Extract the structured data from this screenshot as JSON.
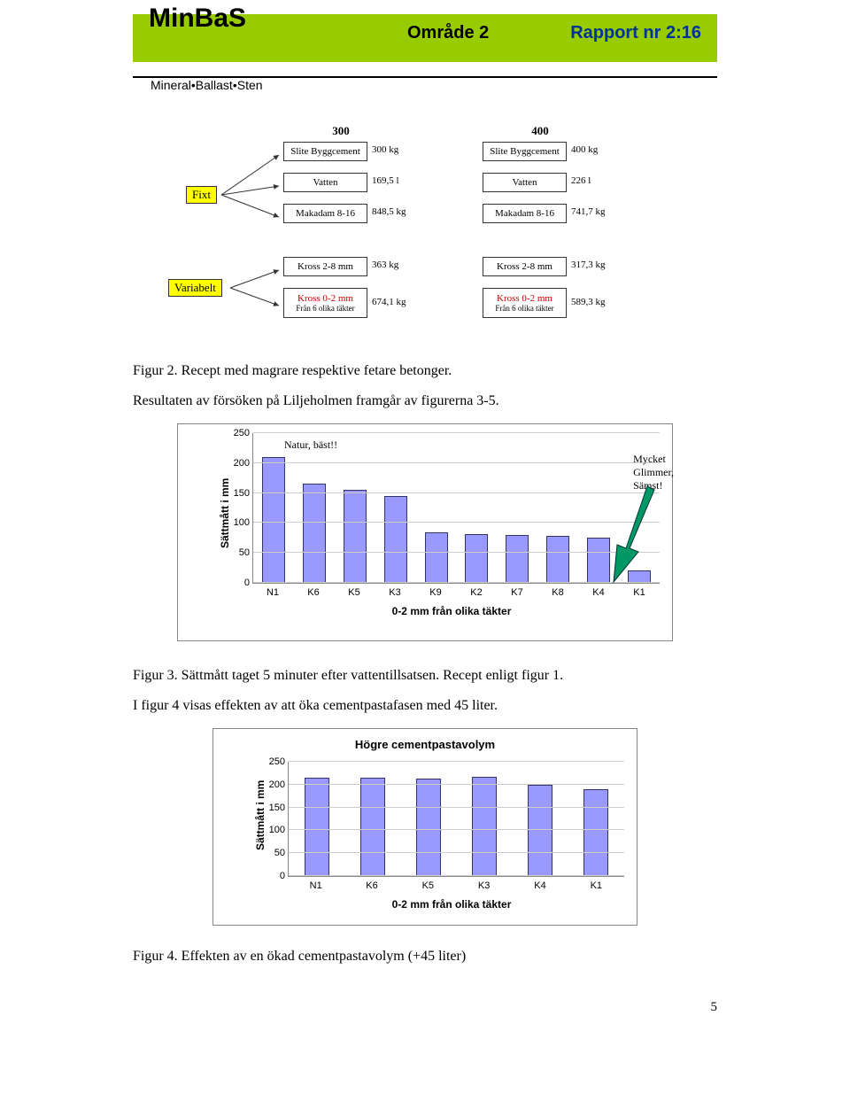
{
  "header": {
    "title": "MinBaS",
    "subtitle": "Mineral•Ballast•Sten",
    "middle": "Område 2",
    "right": "Rapport nr 2:16"
  },
  "flow": {
    "fixt_label": "Fixt",
    "var_label": "Variabelt",
    "col300": {
      "head": "300",
      "rows": [
        {
          "label": "Slite Byggcement",
          "val": "300 kg"
        },
        {
          "label": "Vatten",
          "val": "169,5 l"
        },
        {
          "label": "Makadam 8-16",
          "val": "848,5 kg"
        },
        {
          "label": "Kross 2-8 mm",
          "val": "363 kg"
        },
        {
          "label": "Kross 0-2 mm",
          "sub": "Från 6 olika täkter",
          "val": "674,1 kg",
          "red": true
        }
      ]
    },
    "col400": {
      "head": "400",
      "rows": [
        {
          "label": "Slite Byggcement",
          "val": "400 kg"
        },
        {
          "label": "Vatten",
          "val": "226 l"
        },
        {
          "label": "Makadam 8-16",
          "val": "741,7 kg"
        },
        {
          "label": "Kross 2-8 mm",
          "val": "317,3 kg"
        },
        {
          "label": "Kross 0-2 mm",
          "sub": "Från 6 olika täkter",
          "val": "589,3 kg",
          "red": true
        }
      ]
    }
  },
  "caption_fig2": "Figur 2. Recept med magrare respektive fetare betonger.",
  "body1": "Resultaten av försöken på Liljeholmen framgår av figurerna 3-5.",
  "chart1": {
    "ylabel": "Sättmått i mm",
    "yticks": [
      0,
      50,
      100,
      150,
      200,
      250
    ],
    "ymax": 250,
    "categories": [
      "N1",
      "K6",
      "K5",
      "K3",
      "K9",
      "K2",
      "K7",
      "K8",
      "K4",
      "K1"
    ],
    "values": [
      210,
      165,
      155,
      145,
      85,
      82,
      80,
      78,
      75,
      20
    ],
    "xaxis": "0-2 mm från olika täkter",
    "annotation_left": "Natur, bäst!!",
    "annotation_right": "Mycket\nGlimmer,\nSämst!",
    "bar_fill": "#9999ff",
    "bar_stroke": "#333366",
    "arrow_fill": "#009966",
    "arrow_stroke": "#003333"
  },
  "caption_fig3_a": "Figur 3. Sättmått taget 5 minuter efter vattentillsatsen. Recept enligt figur 1.",
  "caption_fig3_b": "I figur 4 visas effekten av att öka cementpastafasen med 45 liter.",
  "chart2": {
    "title": "Högre cementpastavolym",
    "ylabel": "Sättmått i mm",
    "yticks": [
      0,
      50,
      100,
      150,
      200,
      250
    ],
    "ymax": 250,
    "categories": [
      "N1",
      "K6",
      "K5",
      "K3",
      "K4",
      "K1"
    ],
    "values": [
      215,
      215,
      213,
      218,
      200,
      190
    ],
    "xaxis": "0-2 mm från olika täkter",
    "bar_fill": "#9999ff",
    "bar_stroke": "#333366"
  },
  "caption_fig4": "Figur 4. Effekten av en ökad cementpastavolym (+45 liter)",
  "page_number": "5"
}
